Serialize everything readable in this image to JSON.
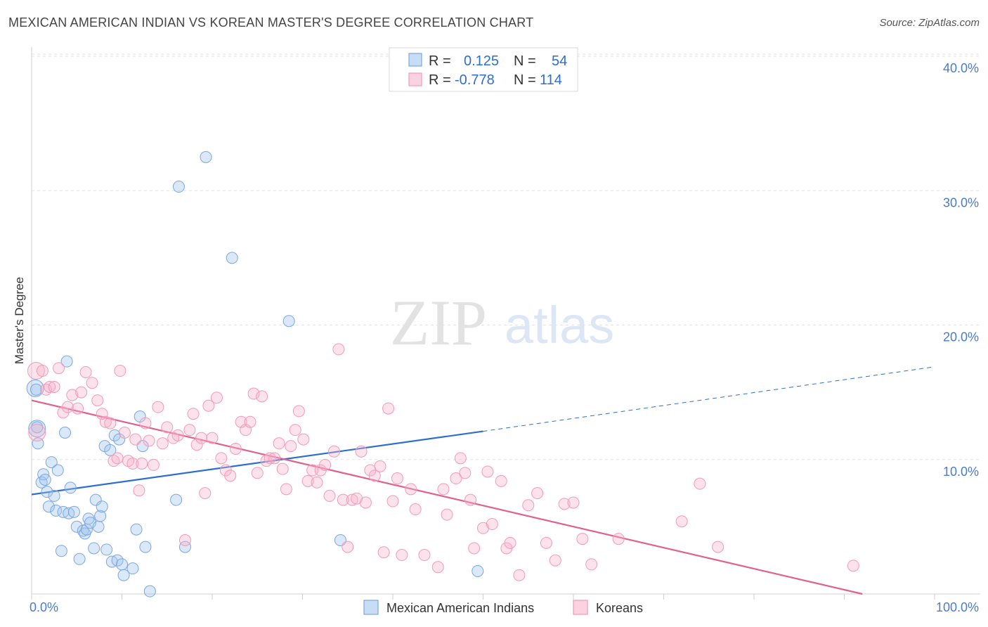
{
  "title": "MEXICAN AMERICAN INDIAN VS KOREAN MASTER'S DEGREE CORRELATION CHART",
  "source": "Source: ZipAtlas.com",
  "watermark": {
    "zip": "ZIP",
    "atlas": "atlas"
  },
  "legend": {
    "r_label": "R =",
    "n_label": "N =",
    "rows": [
      {
        "r": "0.125",
        "n": "54",
        "color": "#7aa7e0"
      },
      {
        "r": "-0.778",
        "n": "114",
        "color": "#f29ab5"
      }
    ]
  },
  "chart_data": {
    "type": "scatter",
    "title": "MEXICAN AMERICAN INDIAN VS KOREAN MASTER'S DEGREE CORRELATION CHART",
    "ylabel": "Master's Degree",
    "xlim": [
      0,
      100
    ],
    "ylim": [
      0,
      40
    ],
    "x_tick_labels": [
      "0.0%",
      "100.0%"
    ],
    "y_ticks": [
      10,
      20,
      30,
      40
    ],
    "y_tick_labels": [
      "10.0%",
      "20.0%",
      "30.0%",
      "40.0%"
    ],
    "grid": true,
    "legend_position": "top-center",
    "series": [
      {
        "name": "Mexican American Indians",
        "color": "#7aa7e0",
        "line_color": "#2e6fcc",
        "trend": {
          "x0": 0,
          "y0": 7.4,
          "x1": 50,
          "y1": 12.1,
          "dash_to_x": 100,
          "dash_to_y": 16.9
        },
        "points": [
          [
            0.5,
            15.2
          ],
          [
            0.6,
            12.4
          ],
          [
            0.7,
            11.2
          ],
          [
            1.1,
            8.3
          ],
          [
            1.3,
            8.9
          ],
          [
            1.5,
            8.5
          ],
          [
            1.7,
            7.6
          ],
          [
            1.9,
            6.5
          ],
          [
            2.2,
            9.8
          ],
          [
            2.5,
            7.3
          ],
          [
            2.7,
            6.2
          ],
          [
            2.9,
            9.2
          ],
          [
            3.3,
            3.2
          ],
          [
            3.5,
            6.1
          ],
          [
            3.7,
            12.0
          ],
          [
            3.9,
            17.3
          ],
          [
            4.1,
            6.0
          ],
          [
            4.3,
            7.9
          ],
          [
            4.7,
            6.1
          ],
          [
            5.0,
            5.0
          ],
          [
            5.3,
            2.6
          ],
          [
            5.7,
            4.7
          ],
          [
            5.9,
            4.5
          ],
          [
            6.1,
            4.8
          ],
          [
            6.3,
            5.6
          ],
          [
            6.5,
            5.3
          ],
          [
            6.9,
            3.4
          ],
          [
            7.1,
            7.0
          ],
          [
            7.4,
            5.0
          ],
          [
            7.6,
            5.8
          ],
          [
            7.8,
            6.5
          ],
          [
            8.1,
            11.0
          ],
          [
            8.3,
            3.3
          ],
          [
            8.7,
            10.7
          ],
          [
            8.9,
            2.4
          ],
          [
            9.2,
            11.8
          ],
          [
            9.5,
            2.5
          ],
          [
            9.7,
            11.5
          ],
          [
            10.0,
            2.2
          ],
          [
            10.2,
            1.4
          ],
          [
            11.2,
            1.9
          ],
          [
            11.6,
            4.8
          ],
          [
            12.0,
            13.2
          ],
          [
            12.3,
            11.0
          ],
          [
            12.6,
            3.5
          ],
          [
            13.1,
            0.2
          ],
          [
            16.0,
            7.0
          ],
          [
            16.3,
            30.3
          ],
          [
            17.0,
            3.5
          ],
          [
            19.3,
            32.5
          ],
          [
            22.2,
            25.0
          ],
          [
            28.5,
            20.3
          ],
          [
            34.2,
            4.0
          ],
          [
            49.4,
            1.7
          ]
        ],
        "large_points": [
          [
            0.4,
            15.3
          ],
          [
            0.6,
            12.3
          ]
        ]
      },
      {
        "name": "Koreans",
        "color": "#f29ab5",
        "line_color": "#e0608f",
        "trend": {
          "x0": 0,
          "y0": 14.4,
          "x1": 92,
          "y1": 0
        },
        "points": [
          [
            1.2,
            16.6
          ],
          [
            1.6,
            15.2
          ],
          [
            2.0,
            15.4
          ],
          [
            2.5,
            15.4
          ],
          [
            3.0,
            16.8
          ],
          [
            3.5,
            13.5
          ],
          [
            4.0,
            13.9
          ],
          [
            4.5,
            14.8
          ],
          [
            5.1,
            13.8
          ],
          [
            5.5,
            15.0
          ],
          [
            6.0,
            16.5
          ],
          [
            6.7,
            15.7
          ],
          [
            7.3,
            14.4
          ],
          [
            7.8,
            13.4
          ],
          [
            8.2,
            12.8
          ],
          [
            8.7,
            12.7
          ],
          [
            9.1,
            9.9
          ],
          [
            9.5,
            10.1
          ],
          [
            9.8,
            16.6
          ],
          [
            10.3,
            12.0
          ],
          [
            10.7,
            9.9
          ],
          [
            11.2,
            9.7
          ],
          [
            11.5,
            11.5
          ],
          [
            11.9,
            7.7
          ],
          [
            12.2,
            9.7
          ],
          [
            12.6,
            12.7
          ],
          [
            13.0,
            11.4
          ],
          [
            13.5,
            9.6
          ],
          [
            14.0,
            13.9
          ],
          [
            14.5,
            11.2
          ],
          [
            15.0,
            12.4
          ],
          [
            15.7,
            11.6
          ],
          [
            16.2,
            11.8
          ],
          [
            17.0,
            4.0
          ],
          [
            17.5,
            12.2
          ],
          [
            17.9,
            13.4
          ],
          [
            18.3,
            11.1
          ],
          [
            18.8,
            11.6
          ],
          [
            19.2,
            7.5
          ],
          [
            19.6,
            14.0
          ],
          [
            20.0,
            11.6
          ],
          [
            20.5,
            14.6
          ],
          [
            21.0,
            10.1
          ],
          [
            21.5,
            9.2
          ],
          [
            22.0,
            8.8
          ],
          [
            22.6,
            10.8
          ],
          [
            23.2,
            12.8
          ],
          [
            23.7,
            12.2
          ],
          [
            24.2,
            12.8
          ],
          [
            24.6,
            14.9
          ],
          [
            25.0,
            9.0
          ],
          [
            25.5,
            14.7
          ],
          [
            26.0,
            9.9
          ],
          [
            26.4,
            10.1
          ],
          [
            26.9,
            10.1
          ],
          [
            27.4,
            11.2
          ],
          [
            27.8,
            9.3
          ],
          [
            28.2,
            7.8
          ],
          [
            28.7,
            11.0
          ],
          [
            29.2,
            12.2
          ],
          [
            29.6,
            13.6
          ],
          [
            30.1,
            11.5
          ],
          [
            30.6,
            8.4
          ],
          [
            31.1,
            9.2
          ],
          [
            31.6,
            8.3
          ],
          [
            32.0,
            9.2
          ],
          [
            32.5,
            9.6
          ],
          [
            33.0,
            7.3
          ],
          [
            33.5,
            10.6
          ],
          [
            34.0,
            18.2
          ],
          [
            34.5,
            7.0
          ],
          [
            35.0,
            3.5
          ],
          [
            35.5,
            7.0
          ],
          [
            36.0,
            7.1
          ],
          [
            36.5,
            10.6
          ],
          [
            37.0,
            6.8
          ],
          [
            37.5,
            9.2
          ],
          [
            38.0,
            8.8
          ],
          [
            38.6,
            9.5
          ],
          [
            39.0,
            3.1
          ],
          [
            39.5,
            13.8
          ],
          [
            40.0,
            6.9
          ],
          [
            40.5,
            8.6
          ],
          [
            41.0,
            2.9
          ],
          [
            42.0,
            7.8
          ],
          [
            42.5,
            6.3
          ],
          [
            43.5,
            2.9
          ],
          [
            45.0,
            2.0
          ],
          [
            45.6,
            7.8
          ],
          [
            46.0,
            5.9
          ],
          [
            47.0,
            8.6
          ],
          [
            47.5,
            10.1
          ],
          [
            48.0,
            9.0
          ],
          [
            48.6,
            7.0
          ],
          [
            49.0,
            3.4
          ],
          [
            50.0,
            4.9
          ],
          [
            50.5,
            9.1
          ],
          [
            51.0,
            5.2
          ],
          [
            52.0,
            8.4
          ],
          [
            52.6,
            3.4
          ],
          [
            53.0,
            3.8
          ],
          [
            54.0,
            1.4
          ],
          [
            55.0,
            6.6
          ],
          [
            56.0,
            7.5
          ],
          [
            57.0,
            3.8
          ],
          [
            58.0,
            2.5
          ],
          [
            59.0,
            6.7
          ],
          [
            60.0,
            6.8
          ],
          [
            61.0,
            4.1
          ],
          [
            62.0,
            2.2
          ],
          [
            65.0,
            4.1
          ],
          [
            72.0,
            5.4
          ],
          [
            74.0,
            8.2
          ],
          [
            76.0,
            3.5
          ],
          [
            91.0,
            2.1
          ]
        ],
        "large_points": [
          [
            0.5,
            16.6
          ],
          [
            0.6,
            12.0
          ]
        ]
      }
    ]
  },
  "bottom_legend": [
    {
      "label": "Mexican American Indians",
      "color": "#7aa7e0"
    },
    {
      "label": "Koreans",
      "color": "#f29ab5"
    }
  ]
}
